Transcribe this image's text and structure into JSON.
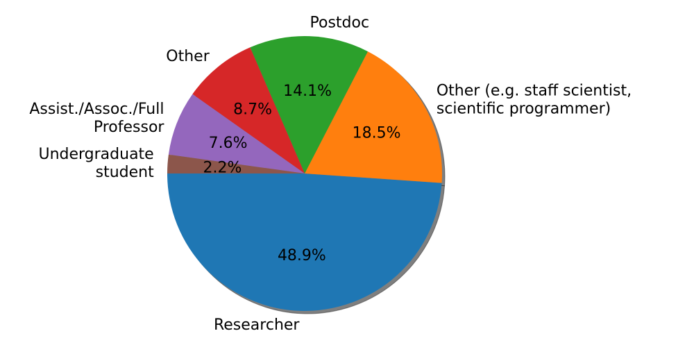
{
  "chart_data": {
    "type": "pie",
    "title": "",
    "start_angle_deg": 180,
    "counterclockwise": true,
    "shadow": true,
    "autopct_format": "%.1f%%",
    "slices": [
      {
        "label": "Researcher",
        "value": 48.9,
        "pct_text": "48.9%",
        "color": "#1f77b4"
      },
      {
        "label": "Other (e.g. staff scientist,\nscientific programmer)",
        "value": 18.5,
        "pct_text": "18.5%",
        "color": "#ff7f0e"
      },
      {
        "label": "Postdoc",
        "value": 14.1,
        "pct_text": "14.1%",
        "color": "#2ca02c"
      },
      {
        "label": "Other",
        "value": 8.7,
        "pct_text": "8.7%",
        "color": "#d62728"
      },
      {
        "label": "Assist./Assoc./Full\nProfessor",
        "value": 7.6,
        "pct_text": "7.6%",
        "color": "#9467bd"
      },
      {
        "label": "Undergraduate\nstudent",
        "value": 2.2,
        "pct_text": "2.2%",
        "color": "#8c564b"
      }
    ]
  }
}
